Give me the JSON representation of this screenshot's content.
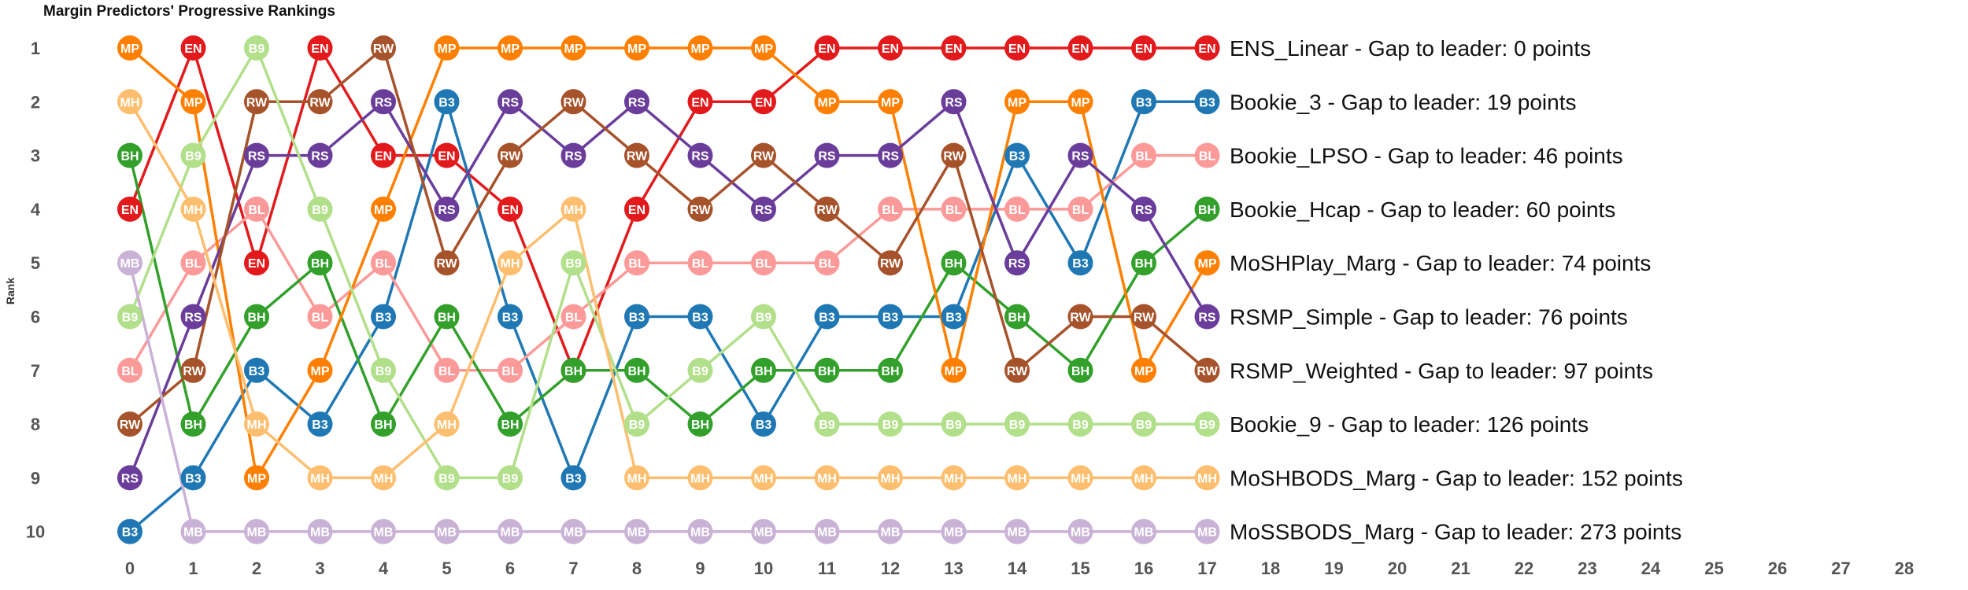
{
  "chart_data": {
    "type": "line",
    "title": "Margin Predictors' Progressive Rankings",
    "xlabel": "",
    "ylabel": "Rank",
    "x": [
      0,
      1,
      2,
      3,
      4,
      5,
      6,
      7,
      8,
      9,
      10,
      11,
      12,
      13,
      14,
      15,
      16,
      17
    ],
    "x_ticks": [
      0,
      1,
      2,
      3,
      4,
      5,
      6,
      7,
      8,
      9,
      10,
      11,
      12,
      13,
      14,
      15,
      16,
      17,
      18,
      19,
      20,
      21,
      22,
      23,
      24,
      25,
      26,
      27,
      28
    ],
    "y_ticks": [
      1,
      2,
      3,
      4,
      5,
      6,
      7,
      8,
      9,
      10
    ],
    "xlim": [
      0,
      28
    ],
    "ylim": [
      1,
      10
    ],
    "y_reversed": true,
    "series": [
      {
        "code": "EN",
        "name": "ENS_Linear",
        "color": "#e31a1c",
        "label_color": "#ffffff",
        "ranks": [
          4,
          1,
          5,
          1,
          3,
          3,
          4,
          7,
          4,
          2,
          2,
          1,
          1,
          1,
          1,
          1,
          1,
          1
        ],
        "annotation": "ENS_Linear - Gap to leader: 0 points"
      },
      {
        "code": "B3",
        "name": "Bookie_3",
        "color": "#1f78b4",
        "label_color": "#ffffff",
        "ranks": [
          10,
          9,
          7,
          8,
          6,
          2,
          6,
          9,
          6,
          6,
          8,
          6,
          6,
          6,
          3,
          5,
          2,
          2
        ],
        "annotation": "Bookie_3 - Gap to leader: 19 points"
      },
      {
        "code": "BL",
        "name": "Bookie_LPSO",
        "color": "#fb9a99",
        "label_color": "#ffffff",
        "ranks": [
          7,
          5,
          4,
          6,
          5,
          7,
          7,
          6,
          5,
          5,
          5,
          5,
          4,
          4,
          4,
          4,
          3,
          3
        ],
        "annotation": "Bookie_LPSO - Gap to leader: 46 points"
      },
      {
        "code": "BH",
        "name": "Bookie_Hcap",
        "color": "#33a02c",
        "label_color": "#ffffff",
        "ranks": [
          3,
          8,
          6,
          5,
          8,
          6,
          8,
          7,
          7,
          8,
          7,
          7,
          7,
          5,
          6,
          7,
          5,
          4
        ],
        "annotation": "Bookie_Hcap - Gap to leader: 60 points"
      },
      {
        "code": "MP",
        "name": "MoSHPlay_Marg",
        "color": "#ff7f00",
        "label_color": "#ffffff",
        "ranks": [
          1,
          2,
          9,
          7,
          4,
          1,
          1,
          1,
          1,
          1,
          1,
          2,
          2,
          7,
          2,
          2,
          7,
          5
        ],
        "annotation": "MoSHPlay_Marg - Gap to leader: 74 points"
      },
      {
        "code": "RS",
        "name": "RSMP_Simple",
        "color": "#6a3d9a",
        "label_color": "#ffffff",
        "ranks": [
          9,
          6,
          3,
          3,
          2,
          4,
          2,
          3,
          2,
          3,
          4,
          3,
          3,
          2,
          5,
          3,
          4,
          6
        ],
        "annotation": "RSMP_Simple - Gap to leader: 76 points"
      },
      {
        "code": "RW",
        "name": "RSMP_Weighted",
        "color": "#a6522a",
        "label_color": "#ffffff",
        "ranks": [
          8,
          7,
          2,
          2,
          1,
          5,
          3,
          2,
          3,
          4,
          3,
          4,
          5,
          3,
          7,
          6,
          6,
          7
        ],
        "annotation": "RSMP_Weighted - Gap to leader: 97 points"
      },
      {
        "code": "B9",
        "name": "Bookie_9",
        "color": "#b2df8a",
        "label_color": "#ffffff",
        "ranks": [
          6,
          3,
          1,
          4,
          7,
          9,
          9,
          5,
          8,
          7,
          6,
          8,
          8,
          8,
          8,
          8,
          8,
          8
        ],
        "annotation": "Bookie_9 - Gap to leader: 126 points"
      },
      {
        "code": "MH",
        "name": "MoSHBODS_Marg",
        "color": "#fdbf6f",
        "label_color": "#ffffff",
        "ranks": [
          2,
          4,
          8,
          9,
          9,
          8,
          5,
          4,
          9,
          9,
          9,
          9,
          9,
          9,
          9,
          9,
          9,
          9
        ],
        "annotation": "MoSHBODS_Marg - Gap to leader: 152 points"
      },
      {
        "code": "MB",
        "name": "MoSSBODS_Marg",
        "color": "#cab2d6",
        "label_color": "#ffffff",
        "ranks": [
          5,
          10,
          10,
          10,
          10,
          10,
          10,
          10,
          10,
          10,
          10,
          10,
          10,
          10,
          10,
          10,
          10,
          10
        ],
        "annotation": "MoSSBODS_Marg - Gap to leader: 273 points"
      }
    ]
  }
}
